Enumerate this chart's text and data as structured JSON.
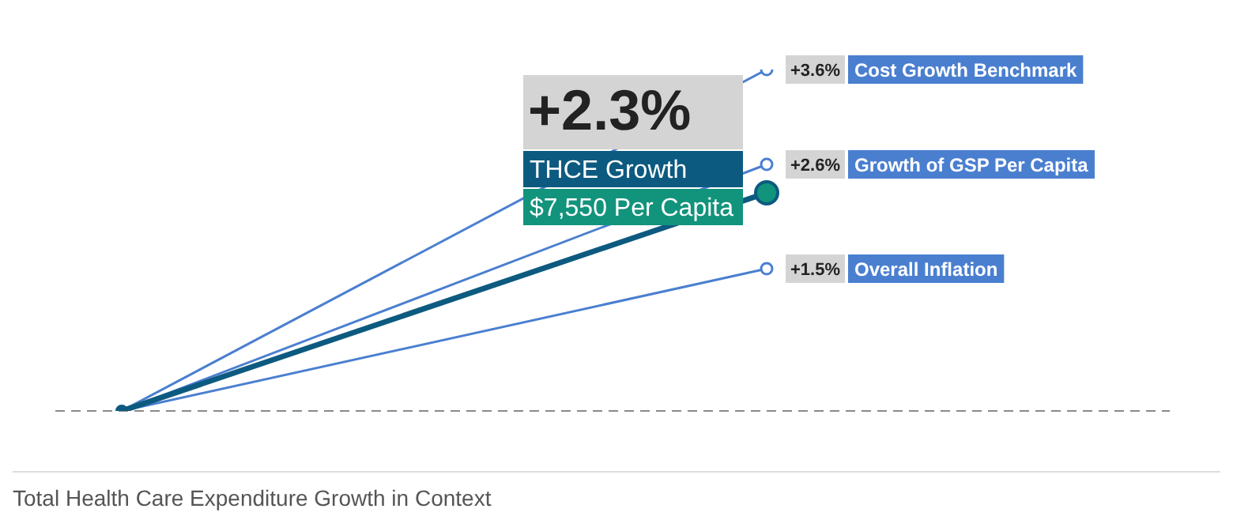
{
  "chart_data": {
    "type": "line",
    "title": "Total Health Care Expenditure Growth in Context",
    "categories": [
      null,
      null
    ],
    "tick_labels": false,
    "marker": "circle",
    "line_style": "solid",
    "series": [
      {
        "name": "THCE Growth",
        "color": "#0d5a80",
        "values": [
          0,
          2.3
        ],
        "value_labels": [
          null,
          "+2.3%"
        ]
      },
      {
        "name": "Cost Growth Benchmark",
        "color": "#4a7fd0",
        "values": [
          0,
          3.6
        ],
        "value_labels": [
          null,
          "+3.6%"
        ]
      },
      {
        "name": "Growth of GSP Per Capita",
        "color": "#4a7fd0",
        "values": [
          0,
          2.6
        ],
        "value_labels": [
          null,
          "+2.6%"
        ]
      },
      {
        "name": "Overall Inflation",
        "color": "#4a7fd0",
        "values": [
          0,
          1.5
        ],
        "value_labels": [
          null,
          "+1.5%"
        ]
      }
    ],
    "annotations": [
      "$7,550 Per Capita"
    ],
    "ref_lines": [
      {
        "axis": "y",
        "value": 0,
        "color": "#8a8a8a",
        "line_style": "dashed"
      }
    ]
  }
}
